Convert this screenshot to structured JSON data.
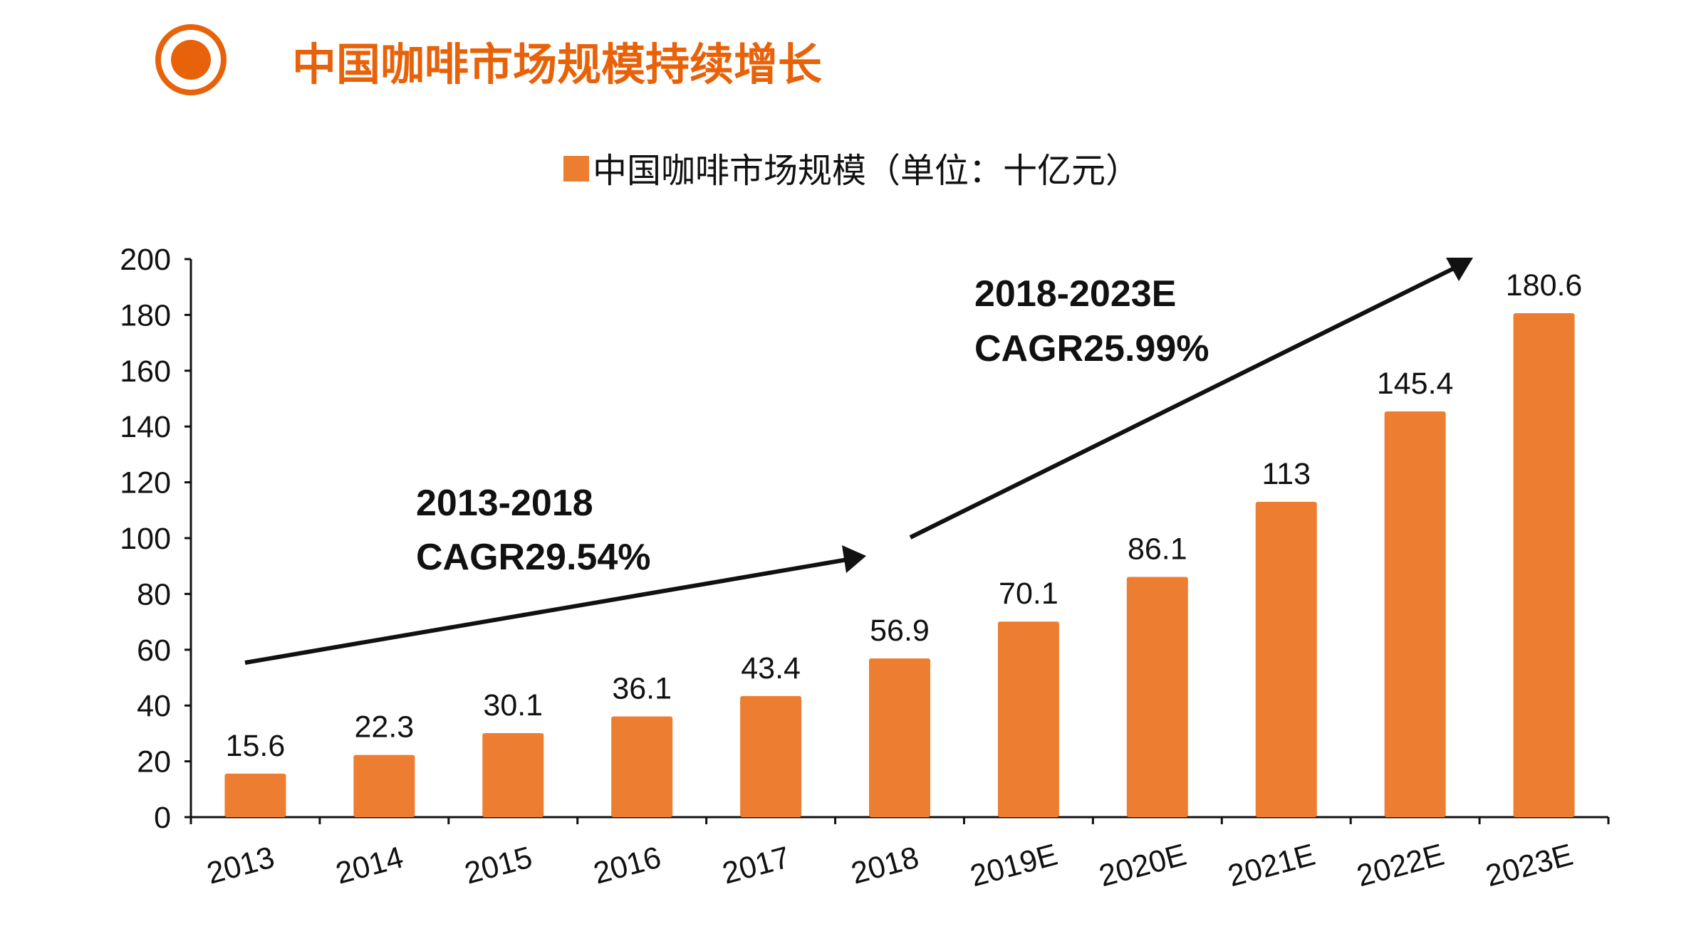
{
  "header": {
    "title": "中国咖啡市场规模持续增长",
    "icon": "target-circle-icon",
    "accent_color": "#E8620A"
  },
  "chart_data": {
    "type": "bar",
    "title": "",
    "legend": {
      "label": "中国咖啡市场规模（单位：十亿元）",
      "placement": "top-center"
    },
    "categories": [
      "2013",
      "2014",
      "2015",
      "2016",
      "2017",
      "2018",
      "2019E",
      "2020E",
      "2021E",
      "2022E",
      "2023E"
    ],
    "series": [
      {
        "name": "中国咖啡市场规模（单位：十亿元）",
        "values": [
          15.6,
          22.3,
          30.1,
          36.1,
          43.4,
          56.9,
          70.1,
          86.1,
          113,
          145.4,
          180.6
        ],
        "color": "#ED7D31"
      }
    ],
    "data_labels": [
      "15.6",
      "22.3",
      "30.1",
      "36.1",
      "43.4",
      "56.9",
      "70.1",
      "86.1",
      "113",
      "145.4",
      "180.6"
    ],
    "ylim": [
      0,
      200
    ],
    "yticks": [
      "0",
      "20",
      "40",
      "60",
      "80",
      "100",
      "120",
      "140",
      "160",
      "180",
      "200"
    ],
    "grid": false,
    "xlabel": "",
    "ylabel": "",
    "annotations": [
      {
        "line1": "2013-2018",
        "line2": "CAGR29.54%"
      },
      {
        "line1": "2018-2023E",
        "line2": "CAGR25.99%"
      }
    ]
  }
}
